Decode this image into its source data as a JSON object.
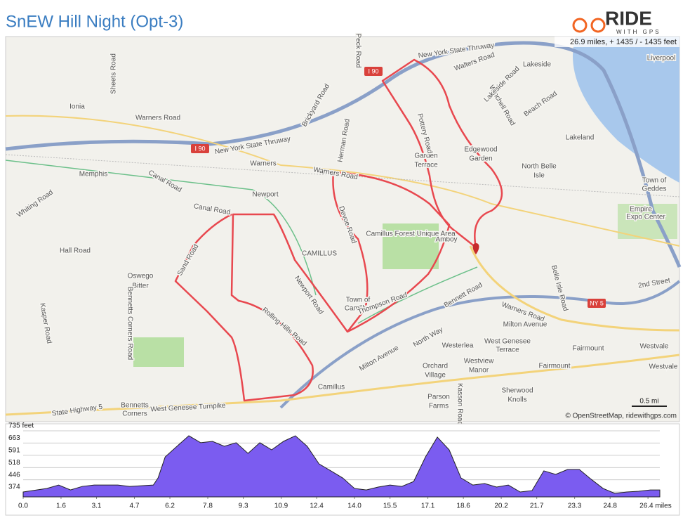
{
  "header": {
    "title": "SnEW Hill Night (Opt-3)",
    "logo": "RIDE",
    "logo_sub": "WITH GPS",
    "stats": "26.9 miles, + 1435 / - 1435 feet"
  },
  "map": {
    "labels": [
      "Ionia",
      "Warners Road",
      "Memphis",
      "Canal Road",
      "Whiting Road",
      "Hall Road",
      "Oswego",
      "Bitter",
      "Newport",
      "Canal Road",
      "CAMILLUS",
      "Town of",
      "Camillus",
      "Warners",
      "Warners Road",
      "Garden",
      "Terrace",
      "Edgewood",
      "Garden",
      "North Belle",
      "Isle",
      "Lakeland",
      "Lakeside",
      "Walters Road",
      "Amboy",
      "Westerlea",
      "West Genesee",
      "Terrace",
      "Westview",
      "Manor",
      "Orchard",
      "Village",
      "Parson",
      "Farms",
      "Sherwood",
      "Knolls",
      "Fairmount",
      "Fairmount",
      "Westvale",
      "Westvale",
      "2nd Street",
      "Milton Avenue",
      "Warners Road",
      "Bennetts",
      "Corners",
      "West Genesee Turnpike",
      "State Highway 5",
      "Camillus",
      "Town of",
      "Geddes",
      "Empire",
      "Expo Center",
      "Liverpool",
      "New York State Thruway",
      "New York State Thruway",
      "Sand Road",
      "Bennett Road",
      "North Way",
      "Milton Avenue",
      "Thompson Road",
      "Newport Road",
      "Rolling Hills Road",
      "Devoe Road",
      "Pottery Road",
      "Belle Isle Road",
      "Kasson Road",
      "Peck Road",
      "Brickyard Road",
      "Herman Road",
      "Winchell Road",
      "Beach Road",
      "Lakeside Road",
      "Sheets Road",
      "Kasper Road",
      "Bennetts Corners Road",
      "Camillus Forest Unique Area"
    ],
    "shields": [
      "I 90",
      "I 90",
      "NY 5"
    ],
    "scale": "0.5 mi",
    "attribution": "© OpenStreetMap, ridewithgps.com"
  },
  "chart_data": {
    "type": "area",
    "color": "#7b5cf0",
    "x": [
      0,
      1,
      1.5,
      2,
      2.5,
      3,
      3.5,
      4,
      4.5,
      5,
      5.5,
      5.7,
      6,
      6.5,
      7,
      7.5,
      8,
      8.5,
      9,
      9.5,
      10,
      10.5,
      11,
      11.5,
      12,
      12.5,
      13,
      13.5,
      14,
      14.5,
      15,
      15.5,
      16,
      16.5,
      17,
      17.5,
      18,
      18.5,
      19,
      19.5,
      20,
      20.5,
      21,
      21.5,
      22,
      22.5,
      23,
      23.5,
      24,
      24.5,
      25,
      25.5,
      26,
      26.5,
      26.9
    ],
    "values": [
      374,
      395,
      415,
      386,
      407,
      415,
      415,
      415,
      407,
      411,
      415,
      457,
      581,
      644,
      706,
      665,
      673,
      644,
      665,
      602,
      665,
      623,
      673,
      706,
      644,
      540,
      499,
      457,
      395,
      386,
      403,
      415,
      407,
      436,
      581,
      698,
      623,
      457,
      415,
      424,
      403,
      415,
      374,
      382,
      499,
      478,
      507,
      507,
      449,
      395,
      366,
      374,
      378,
      386,
      386
    ],
    "xlim": [
      0,
      26.9
    ],
    "ylim": [
      345,
      756
    ],
    "xticks": [
      {
        "value": 0,
        "label": "0.0"
      },
      1.6,
      3.1,
      4.7,
      6.2,
      7.8,
      9.3,
      10.9,
      12.4,
      {
        "value": 14,
        "label": "14.0"
      },
      15.5,
      17.1,
      18.6,
      20.2,
      21.7,
      23.3,
      24.8,
      {
        "value": 26.4,
        "label": "26.4 miles"
      }
    ],
    "yticks": [
      374,
      446,
      518,
      591,
      663,
      {
        "value": 735,
        "label": "735 feet"
      }
    ],
    "grid": true
  }
}
